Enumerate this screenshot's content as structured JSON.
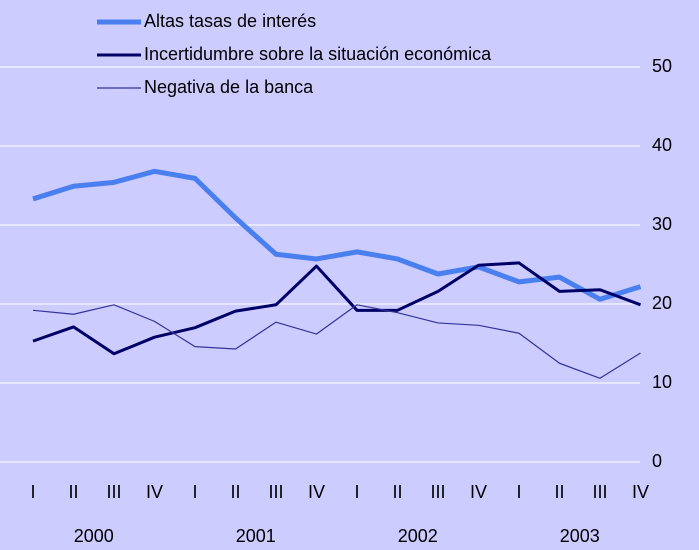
{
  "chart_data": {
    "type": "line",
    "categories": [
      "I",
      "II",
      "III",
      "IV",
      "I",
      "II",
      "III",
      "IV",
      "I",
      "II",
      "III",
      "IV",
      "I",
      "II",
      "III",
      "IV"
    ],
    "year_labels": [
      "2000",
      "2001",
      "2002",
      "2003"
    ],
    "series": [
      {
        "name": "Altas tasas de interés",
        "color": "#4a7ff0",
        "width": 5,
        "values": [
          33.3,
          34.9,
          35.4,
          36.8,
          35.9,
          30.9,
          26.3,
          25.7,
          26.6,
          25.7,
          23.8,
          24.7,
          22.8,
          23.4,
          20.6,
          22.2
        ]
      },
      {
        "name": "Incertidumbre sobre la situación económica",
        "color": "#000066",
        "width": 3,
        "values": [
          15.3,
          17.1,
          13.7,
          15.8,
          17.0,
          19.1,
          19.9,
          24.8,
          19.2,
          19.2,
          21.6,
          24.9,
          25.2,
          21.6,
          21.8,
          19.9
        ]
      },
      {
        "name": "Negativa de la banca",
        "color": "#333399",
        "width": 1.2,
        "values": [
          19.2,
          18.7,
          19.9,
          17.8,
          14.6,
          14.3,
          17.7,
          16.2,
          19.9,
          18.9,
          17.6,
          17.3,
          16.3,
          12.5,
          10.6,
          13.8
        ]
      }
    ],
    "ylim": [
      0,
      50
    ],
    "yticks": [
      0,
      10,
      20,
      30,
      40,
      50
    ],
    "grid": true,
    "legend": "top-left"
  }
}
